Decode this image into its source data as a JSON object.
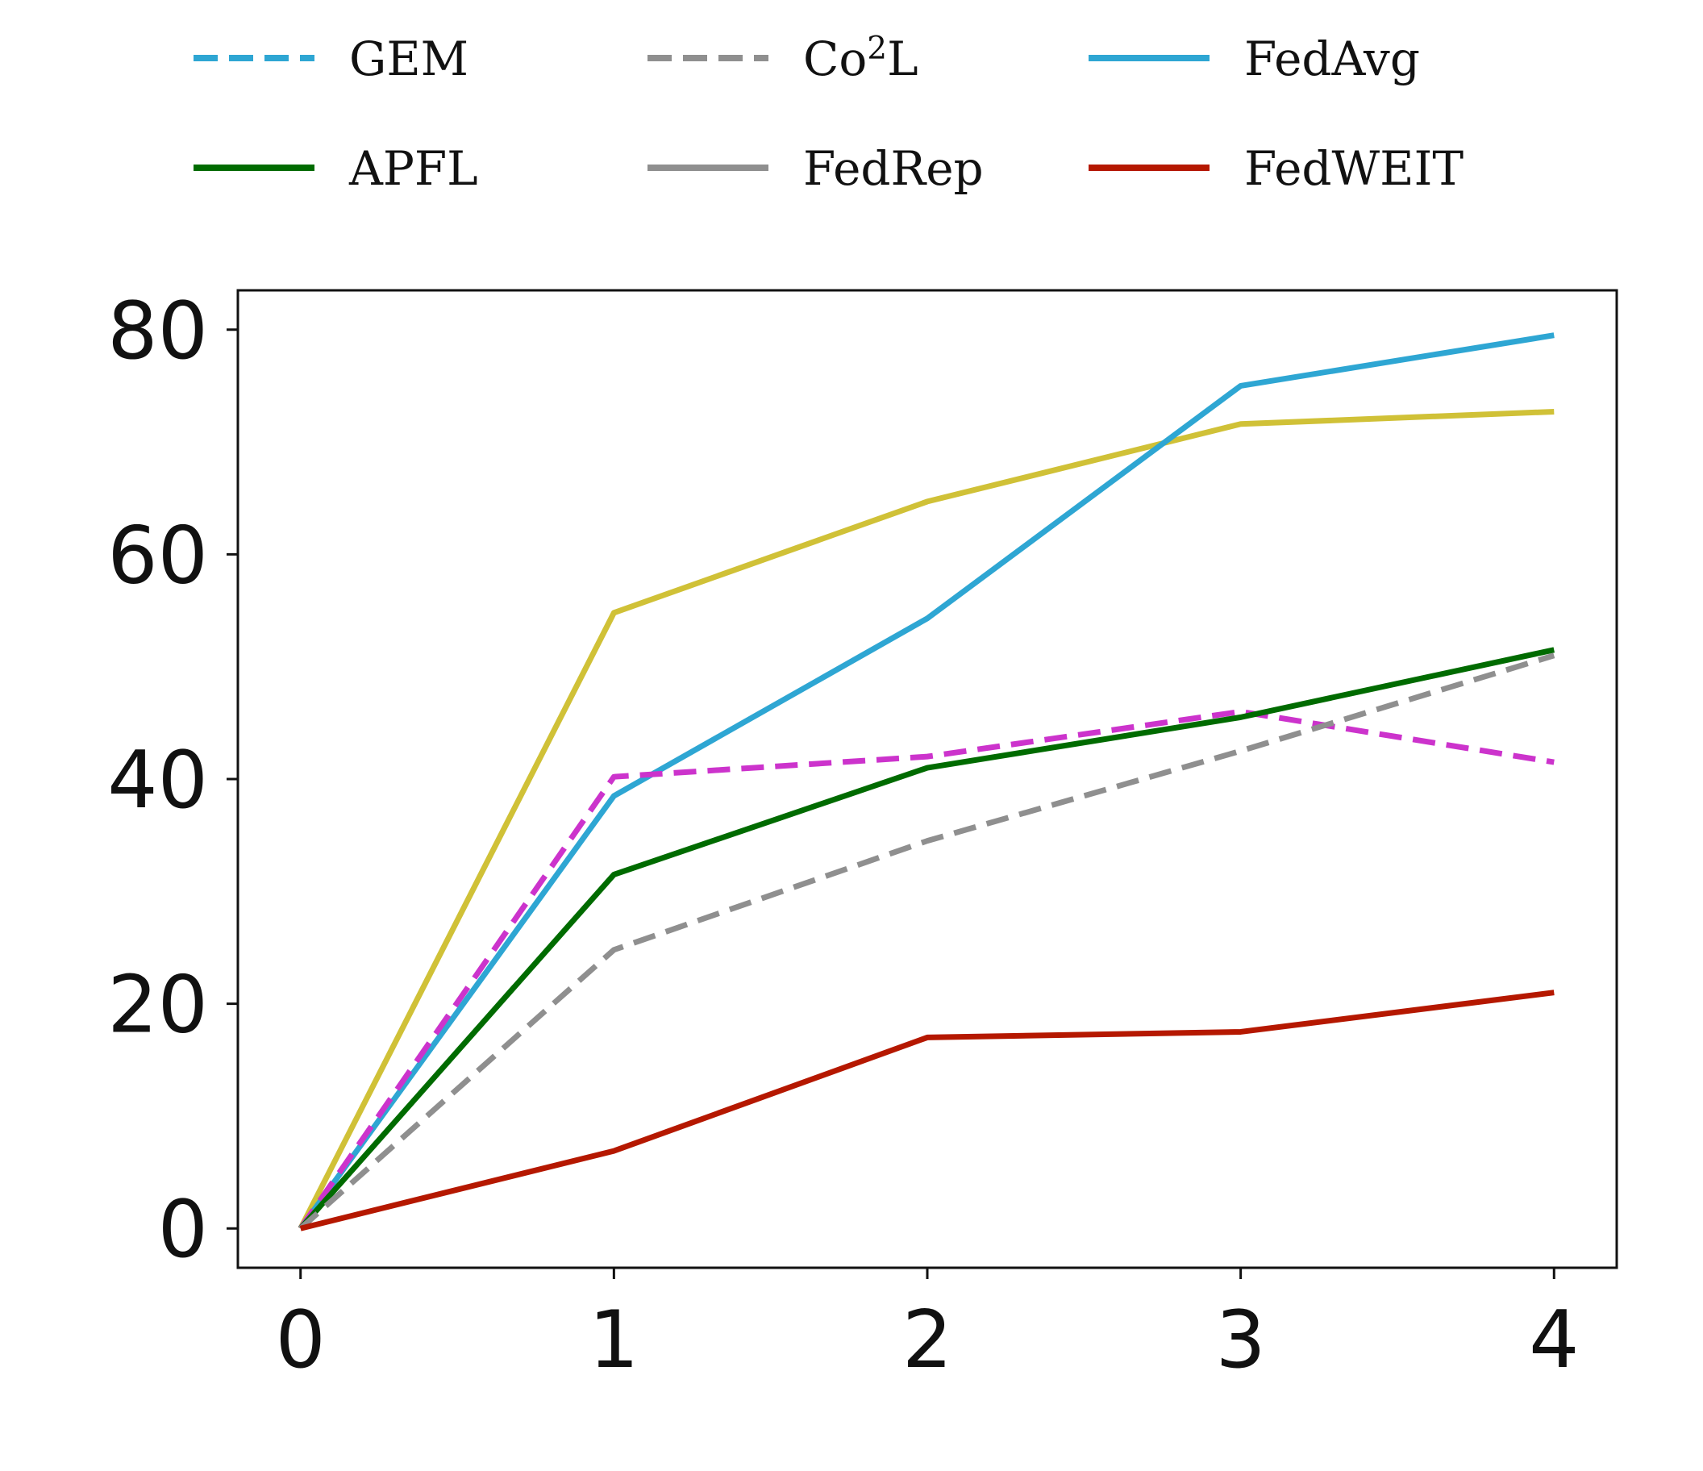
{
  "chart_data": {
    "type": "line",
    "title": "",
    "xlabel": "",
    "ylabel": "",
    "x": [
      0,
      1,
      2,
      3,
      4
    ],
    "xlim": [
      -0.2,
      4.2
    ],
    "ylim": [
      -3.5,
      83.5
    ],
    "x_ticks": [
      "0",
      "1",
      "2",
      "3",
      "4"
    ],
    "y_ticks": [
      "0",
      "20",
      "40",
      "60",
      "80"
    ],
    "grid": false,
    "legend": {
      "placement": "top",
      "columns": 3,
      "entries": [
        {
          "name": "GEM",
          "name_sup": "",
          "name_suffix": "",
          "color": "#2ea6d3",
          "style": "dashed"
        },
        {
          "name": "Co",
          "name_sup": "2",
          "name_suffix": "L",
          "color": "#8f8f8f",
          "style": "dashed"
        },
        {
          "name": "FedAvg",
          "name_sup": "",
          "name_suffix": "",
          "color": "#2ea6d3",
          "style": "solid"
        },
        {
          "name": "APFL",
          "name_sup": "",
          "name_suffix": "",
          "color": "#006b00",
          "style": "solid"
        },
        {
          "name": "FedRep",
          "name_sup": "",
          "name_suffix": "",
          "color": "#8f8f8f",
          "style": "solid"
        },
        {
          "name": "FedWEIT",
          "name_sup": "",
          "name_suffix": "",
          "color": "#b51800",
          "style": "solid"
        }
      ]
    },
    "series": [
      {
        "color": "#d0c137",
        "style": "solid",
        "values": [
          0,
          54.8,
          64.7,
          71.6,
          72.7
        ]
      },
      {
        "color": "#2ea6d3",
        "style": "solid",
        "values": [
          0,
          38.5,
          54.3,
          75.0,
          79.5
        ]
      },
      {
        "color": "#cc33cc",
        "style": "dashed",
        "values": [
          0,
          40.2,
          42.0,
          46.0,
          41.5
        ]
      },
      {
        "color": "#006b00",
        "style": "solid",
        "values": [
          0,
          31.5,
          41.0,
          45.5,
          51.5
        ]
      },
      {
        "color": "#8f8f8f",
        "style": "dashed",
        "values": [
          0,
          24.8,
          34.5,
          42.5,
          51.0
        ]
      },
      {
        "color": "#b51800",
        "style": "solid",
        "values": [
          0,
          6.9,
          17.0,
          17.5,
          21.0
        ]
      }
    ]
  }
}
